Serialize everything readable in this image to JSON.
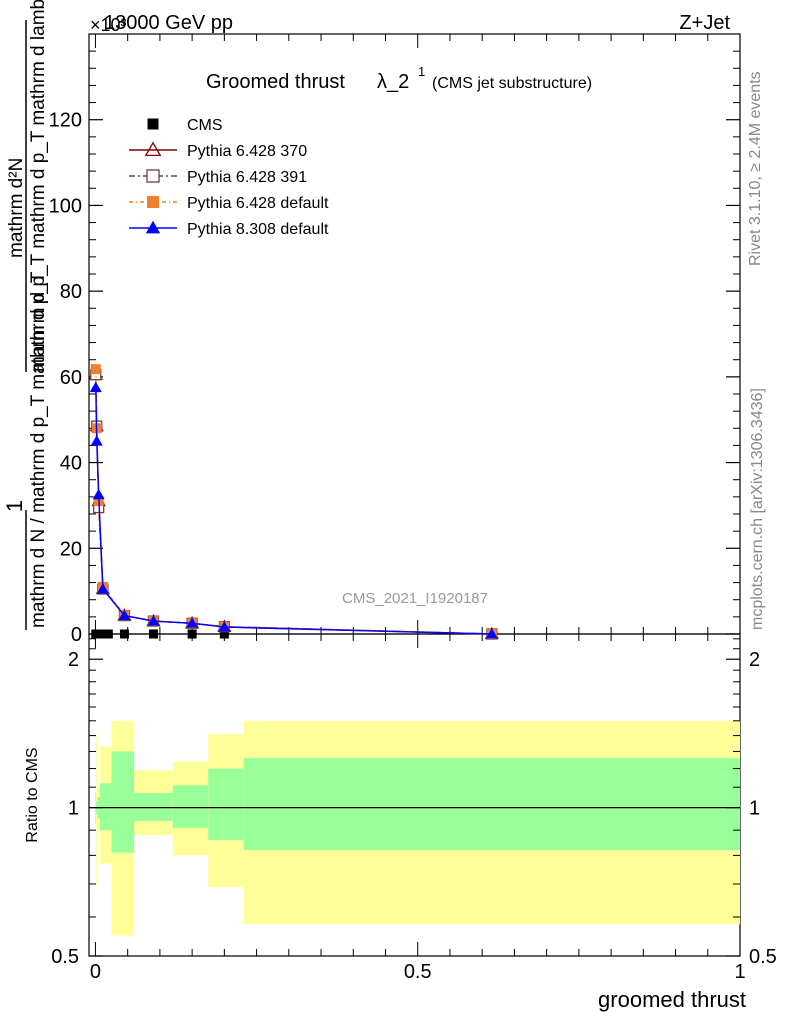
{
  "header": {
    "energy": "13000 GeV pp",
    "process": "Z+Jet",
    "exponent": "×10³"
  },
  "side": {
    "rivet": "Rivet 3.1.10, ≥ 2.4M events",
    "mcplots": "mcplots.cern.ch [arXiv:1306.3436]"
  },
  "watermark": "CMS_2021_I1920187",
  "chart_data": [
    {
      "type": "line",
      "title": "Groomed thrust",
      "title_symbol": "λ_2",
      "title_sup": "1",
      "subtitle": "(CMS jet substructure)",
      "ylabel": {
        "num": "mathrm d²N",
        "den": "mathrm d p_T mathrm d p_T mathrm d lambda",
        "pre": "1",
        "pre_den": "mathrm d N / mathrm d p_T mathrm d p_T",
        "full": "1 / (mathrm d N / mathrm d p_T mathrm d p_T) · mathrm d²N / (mathrm d p_T mathrm d p_T mathrm d lambda)"
      },
      "xlim": [
        -0.01,
        1.0
      ],
      "ylim": [
        0,
        140000
      ],
      "y_scale_label": "×10³",
      "xticks": [
        0,
        0.5,
        1
      ],
      "yticks": [
        0,
        20000,
        40000,
        60000,
        80000,
        100000,
        120000
      ],
      "ytick_labels": [
        "0",
        "20",
        "40",
        "60",
        "80",
        "100",
        "120"
      ],
      "legend_position": "top-left",
      "series": [
        {
          "name": "CMS",
          "color": "#000000",
          "marker": "filled-square",
          "points": [
            [
              0.0005,
              0
            ],
            [
              0.002,
              0
            ],
            [
              0.005,
              0
            ],
            [
              0.0115,
              0
            ],
            [
              0.02,
              0
            ],
            [
              0.045,
              0
            ],
            [
              0.09,
              0
            ],
            [
              0.15,
              0
            ],
            [
              0.2,
              0
            ],
            [
              0.615,
              0
            ]
          ]
        },
        {
          "name": "Pythia 6.428 370",
          "color": "#800000",
          "marker": "open-triangle",
          "points": [
            [
              0.0005,
              60500
            ],
            [
              0.002,
              48500
            ],
            [
              0.005,
              31000
            ],
            [
              0.0115,
              10500
            ],
            [
              0.045,
              4300
            ],
            [
              0.09,
              3000
            ],
            [
              0.15,
              2500
            ],
            [
              0.2,
              1700
            ],
            [
              0.615,
              0
            ]
          ]
        },
        {
          "name": "Pythia 6.428 391",
          "color": "#7a3b3b",
          "marker": "open-square",
          "points": [
            [
              0.0005,
              60500
            ],
            [
              0.002,
              48500
            ],
            [
              0.005,
              29500
            ],
            [
              0.0115,
              10500
            ],
            [
              0.045,
              4300
            ],
            [
              0.09,
              3000
            ],
            [
              0.15,
              2500
            ],
            [
              0.2,
              1700
            ],
            [
              0.615,
              0
            ]
          ]
        },
        {
          "name": "Pythia 6.428 default",
          "color": "#f08030",
          "marker": "filled-square",
          "points": [
            [
              0.0005,
              61800
            ],
            [
              0.002,
              48000
            ],
            [
              0.005,
              31000
            ],
            [
              0.0115,
              11000
            ],
            [
              0.045,
              4400
            ],
            [
              0.09,
              3000
            ],
            [
              0.15,
              2500
            ],
            [
              0.2,
              1700
            ],
            [
              0.615,
              0
            ]
          ]
        },
        {
          "name": "Pythia 8.308 default",
          "color": "#0000ff",
          "marker": "filled-triangle",
          "points": [
            [
              0.0005,
              57500
            ],
            [
              0.002,
              45000
            ],
            [
              0.005,
              32500
            ],
            [
              0.0115,
              10500
            ],
            [
              0.045,
              4300
            ],
            [
              0.09,
              3000
            ],
            [
              0.15,
              2500
            ],
            [
              0.2,
              1600
            ],
            [
              0.615,
              0
            ]
          ]
        }
      ]
    },
    {
      "type": "area",
      "ylabel": "Ratio to CMS",
      "xlabel": "groomed thrust",
      "xlim": [
        -0.01,
        1.0
      ],
      "ylim": [
        0.5,
        2.25
      ],
      "y_scale": "log",
      "yticks": [
        0.5,
        1,
        2
      ],
      "ytick_labels": [
        "0.5",
        "1",
        "2"
      ],
      "reference_line": 1,
      "bands": {
        "inner_color": "#99ff99",
        "outer_color": "#ffff99",
        "bins": [
          {
            "x0": 0.0,
            "x1": 0.001,
            "inner": [
              0.93,
              1.08
            ],
            "outer": [
              0.68,
              1.42
            ]
          },
          {
            "x0": 0.001,
            "x1": 0.003,
            "inner": [
              0.97,
              1.03
            ],
            "outer": [
              0.7,
              1.4
            ]
          },
          {
            "x0": 0.003,
            "x1": 0.007,
            "inner": [
              0.95,
              1.05
            ],
            "outer": [
              0.9,
              1.1
            ]
          },
          {
            "x0": 0.007,
            "x1": 0.025,
            "inner": [
              0.9,
              1.12
            ],
            "outer": [
              0.77,
              1.33
            ]
          },
          {
            "x0": 0.025,
            "x1": 0.06,
            "inner": [
              0.81,
              1.3
            ],
            "outer": [
              0.55,
              1.5
            ]
          },
          {
            "x0": 0.06,
            "x1": 0.12,
            "inner": [
              0.94,
              1.07
            ],
            "outer": [
              0.88,
              1.19
            ]
          },
          {
            "x0": 0.12,
            "x1": 0.175,
            "inner": [
              0.91,
              1.11
            ],
            "outer": [
              0.8,
              1.24
            ]
          },
          {
            "x0": 0.175,
            "x1": 0.23,
            "inner": [
              0.86,
              1.2
            ],
            "outer": [
              0.69,
              1.41
            ]
          },
          {
            "x0": 0.23,
            "x1": 1.0,
            "inner": [
              0.82,
              1.26
            ],
            "outer": [
              0.58,
              1.5
            ]
          }
        ]
      }
    }
  ]
}
